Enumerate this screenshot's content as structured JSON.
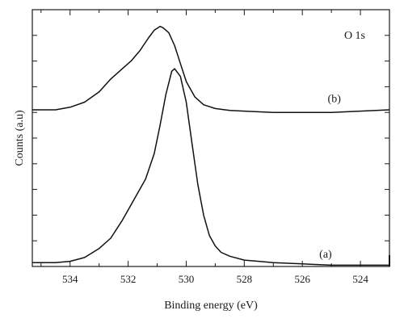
{
  "chart_data": {
    "type": "line",
    "xlabel": "Binding energy (eV)",
    "ylabel": "Counts (a.u)",
    "annotation": "O 1s",
    "x_reversed": true,
    "xlim": [
      535.3,
      523.0
    ],
    "ylim": [
      0,
      100
    ],
    "x_ticks": [
      534,
      532,
      530,
      528,
      526,
      524
    ],
    "x_tick_labels": [
      "534",
      "532",
      "530",
      "528",
      "526",
      "524"
    ],
    "y_tick_count": 10,
    "grid": false,
    "series": [
      {
        "name": "(a)",
        "x": [
          535.3,
          534.5,
          534.0,
          533.5,
          533.0,
          532.6,
          532.2,
          531.8,
          531.4,
          531.1,
          530.9,
          530.7,
          530.5,
          530.4,
          530.2,
          530.0,
          529.8,
          529.6,
          529.4,
          529.2,
          529.0,
          528.8,
          528.5,
          528.0,
          527.5,
          527.0,
          526.0,
          525.0,
          524.0,
          523.0
        ],
        "y": [
          1.5,
          1.5,
          2.0,
          3.5,
          7.0,
          11.0,
          18.0,
          26.0,
          34.0,
          44.0,
          55.0,
          67.0,
          76.0,
          77.0,
          74.0,
          64.0,
          48.0,
          32.0,
          20.0,
          12.0,
          8.0,
          5.5,
          4.0,
          2.5,
          2.0,
          1.5,
          1.0,
          0.5,
          0.5,
          0.5
        ],
        "label_x": 525.2,
        "label_y": 3.5
      },
      {
        "name": "(b)",
        "x": [
          535.3,
          534.5,
          534.0,
          533.5,
          533.0,
          532.6,
          532.2,
          531.9,
          531.6,
          531.3,
          531.1,
          530.9,
          530.8,
          530.6,
          530.4,
          530.2,
          530.0,
          529.7,
          529.4,
          529.0,
          528.5,
          528.0,
          527.0,
          526.0,
          525.0,
          524.0,
          523.0
        ],
        "y": [
          61.0,
          61.0,
          62.0,
          64.0,
          68.0,
          73.0,
          77.0,
          80.0,
          84.0,
          89.0,
          92.0,
          93.5,
          93.0,
          91.0,
          86.0,
          79.0,
          72.0,
          66.0,
          63.0,
          61.5,
          60.8,
          60.5,
          60.0,
          60.0,
          60.0,
          60.5,
          61.0
        ],
        "label_x": 524.9,
        "label_y": 64.0
      }
    ]
  }
}
